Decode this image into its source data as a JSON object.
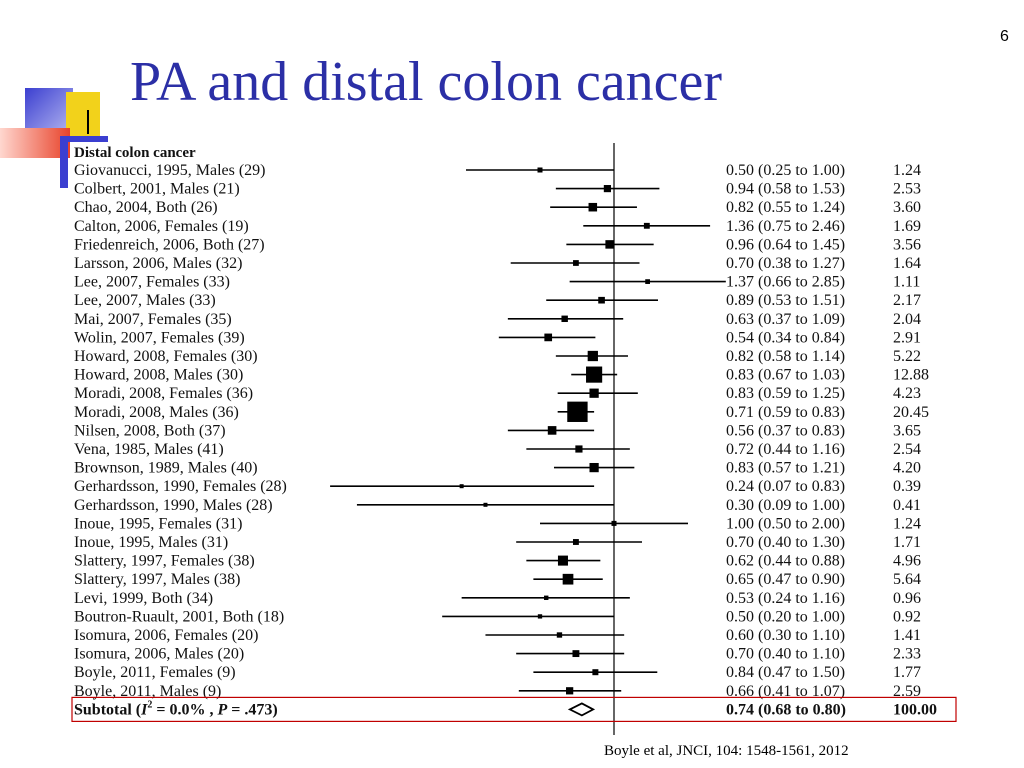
{
  "slide": {
    "number": "6",
    "title": "PA and distal colon cancer",
    "citation": "Boyle et al, JNCI, 104: 1548-1561, 2012"
  },
  "colors": {
    "title": "#2b2fa6",
    "highlight_box": "#c00000",
    "decor_blue": "#3b3fd0",
    "decor_yellow": "#f2d21b",
    "decor_red": "#e8432b"
  },
  "chart_data": {
    "type": "forest",
    "heading": "Distal colon cancer",
    "x_scale": "log",
    "null_value": 1.0,
    "xlim": [
      0.07,
      3.0
    ],
    "studies": [
      {
        "label": "Giovanucci, 1995, Males (29)",
        "est": 0.5,
        "lo": 0.25,
        "hi": 1.0,
        "ci_text": "0.50 (0.25 to 1.00)",
        "weight": "1.24"
      },
      {
        "label": "Colbert, 2001, Males (21)",
        "est": 0.94,
        "lo": 0.58,
        "hi": 1.53,
        "ci_text": "0.94 (0.58 to 1.53)",
        "weight": "2.53"
      },
      {
        "label": "Chao, 2004, Both (26)",
        "est": 0.82,
        "lo": 0.55,
        "hi": 1.24,
        "ci_text": "0.82 (0.55 to 1.24)",
        "weight": "3.60"
      },
      {
        "label": "Calton, 2006, Females (19)",
        "est": 1.36,
        "lo": 0.75,
        "hi": 2.46,
        "ci_text": "1.36 (0.75 to 2.46)",
        "weight": "1.69"
      },
      {
        "label": "Friedenreich, 2006, Both (27)",
        "est": 0.96,
        "lo": 0.64,
        "hi": 1.45,
        "ci_text": "0.96 (0.64 to 1.45)",
        "weight": "3.56"
      },
      {
        "label": "Larsson, 2006, Males (32)",
        "est": 0.7,
        "lo": 0.38,
        "hi": 1.27,
        "ci_text": "0.70 (0.38 to 1.27)",
        "weight": "1.64"
      },
      {
        "label": "Lee, 2007, Females (33)",
        "est": 1.37,
        "lo": 0.66,
        "hi": 2.85,
        "ci_text": "1.37 (0.66 to 2.85)",
        "weight": "1.11"
      },
      {
        "label": "Lee, 2007, Males (33)",
        "est": 0.89,
        "lo": 0.53,
        "hi": 1.51,
        "ci_text": "0.89 (0.53 to 1.51)",
        "weight": "2.17"
      },
      {
        "label": "Mai, 2007, Females (35)",
        "est": 0.63,
        "lo": 0.37,
        "hi": 1.09,
        "ci_text": "0.63 (0.37 to 1.09)",
        "weight": "2.04"
      },
      {
        "label": "Wolin, 2007, Females (39)",
        "est": 0.54,
        "lo": 0.34,
        "hi": 0.84,
        "ci_text": "0.54 (0.34 to 0.84)",
        "weight": "2.91"
      },
      {
        "label": "Howard, 2008, Females (30)",
        "est": 0.82,
        "lo": 0.58,
        "hi": 1.14,
        "ci_text": "0.82 (0.58 to 1.14)",
        "weight": "5.22"
      },
      {
        "label": "Howard, 2008, Males (30)",
        "est": 0.83,
        "lo": 0.67,
        "hi": 1.03,
        "ci_text": "0.83 (0.67 to 1.03)",
        "weight": "12.88"
      },
      {
        "label": "Moradi, 2008, Females (36)",
        "est": 0.83,
        "lo": 0.59,
        "hi": 1.25,
        "ci_text": "0.83 (0.59 to 1.25)",
        "weight": "4.23"
      },
      {
        "label": "Moradi, 2008, Males (36)",
        "est": 0.71,
        "lo": 0.59,
        "hi": 0.83,
        "ci_text": "0.71 (0.59 to 0.83)",
        "weight": "20.45"
      },
      {
        "label": "Nilsen, 2008, Both (37)",
        "est": 0.56,
        "lo": 0.37,
        "hi": 0.83,
        "ci_text": "0.56 (0.37 to 0.83)",
        "weight": "3.65"
      },
      {
        "label": "Vena, 1985, Males (41)",
        "est": 0.72,
        "lo": 0.44,
        "hi": 1.16,
        "ci_text": "0.72 (0.44 to 1.16)",
        "weight": "2.54"
      },
      {
        "label": "Brownson, 1989, Males (40)",
        "est": 0.83,
        "lo": 0.57,
        "hi": 1.21,
        "ci_text": "0.83 (0.57 to 1.21)",
        "weight": "4.20"
      },
      {
        "label": "Gerhardsson, 1990, Females (28)",
        "est": 0.24,
        "lo": 0.07,
        "hi": 0.83,
        "ci_text": "0.24 (0.07 to 0.83)",
        "weight": "0.39"
      },
      {
        "label": "Gerhardsson, 1990, Males (28)",
        "est": 0.3,
        "lo": 0.09,
        "hi": 1.0,
        "ci_text": "0.30 (0.09 to 1.00)",
        "weight": "0.41"
      },
      {
        "label": "Inoue, 1995, Females (31)",
        "est": 1.0,
        "lo": 0.5,
        "hi": 2.0,
        "ci_text": "1.00 (0.50 to 2.00)",
        "weight": "1.24"
      },
      {
        "label": "Inoue, 1995, Males (31)",
        "est": 0.7,
        "lo": 0.4,
        "hi": 1.3,
        "ci_text": "0.70 (0.40 to 1.30)",
        "weight": "1.71"
      },
      {
        "label": "Slattery, 1997, Females (38)",
        "est": 0.62,
        "lo": 0.44,
        "hi": 0.88,
        "ci_text": "0.62 (0.44 to 0.88)",
        "weight": "4.96"
      },
      {
        "label": "Slattery, 1997, Males (38)",
        "est": 0.65,
        "lo": 0.47,
        "hi": 0.9,
        "ci_text": "0.65 (0.47 to 0.90)",
        "weight": "5.64"
      },
      {
        "label": "Levi, 1999, Both (34)",
        "est": 0.53,
        "lo": 0.24,
        "hi": 1.16,
        "ci_text": "0.53 (0.24 to 1.16)",
        "weight": "0.96"
      },
      {
        "label": "Boutron-Ruault, 2001, Both (18)",
        "est": 0.5,
        "lo": 0.2,
        "hi": 1.0,
        "ci_text": "0.50 (0.20 to 1.00)",
        "weight": "0.92"
      },
      {
        "label": "Isomura, 2006, Females (20)",
        "est": 0.6,
        "lo": 0.3,
        "hi": 1.1,
        "ci_text": "0.60 (0.30 to 1.10)",
        "weight": "1.41"
      },
      {
        "label": "Isomura, 2006, Males (20)",
        "est": 0.7,
        "lo": 0.4,
        "hi": 1.1,
        "ci_text": "0.70 (0.40 to 1.10)",
        "weight": "2.33"
      },
      {
        "label": "Boyle, 2011, Females (9)",
        "est": 0.84,
        "lo": 0.47,
        "hi": 1.5,
        "ci_text": "0.84 (0.47 to 1.50)",
        "weight": "1.77"
      },
      {
        "label": "Boyle, 2011, Males (9)",
        "est": 0.66,
        "lo": 0.41,
        "hi": 1.07,
        "ci_text": "0.66 (0.41 to 1.07)",
        "weight": "2.59"
      }
    ],
    "subtotal": {
      "label_prefix": "Subtotal  (",
      "i2_symbol": "I",
      "i2_sup": "2",
      "i2_value": " = 0.0% , ",
      "p_symbol": "P",
      "p_value": " = .473)",
      "est": 0.74,
      "lo": 0.68,
      "hi": 0.8,
      "ci_text": "0.74 (0.68 to 0.80)",
      "weight": "100.00"
    }
  }
}
